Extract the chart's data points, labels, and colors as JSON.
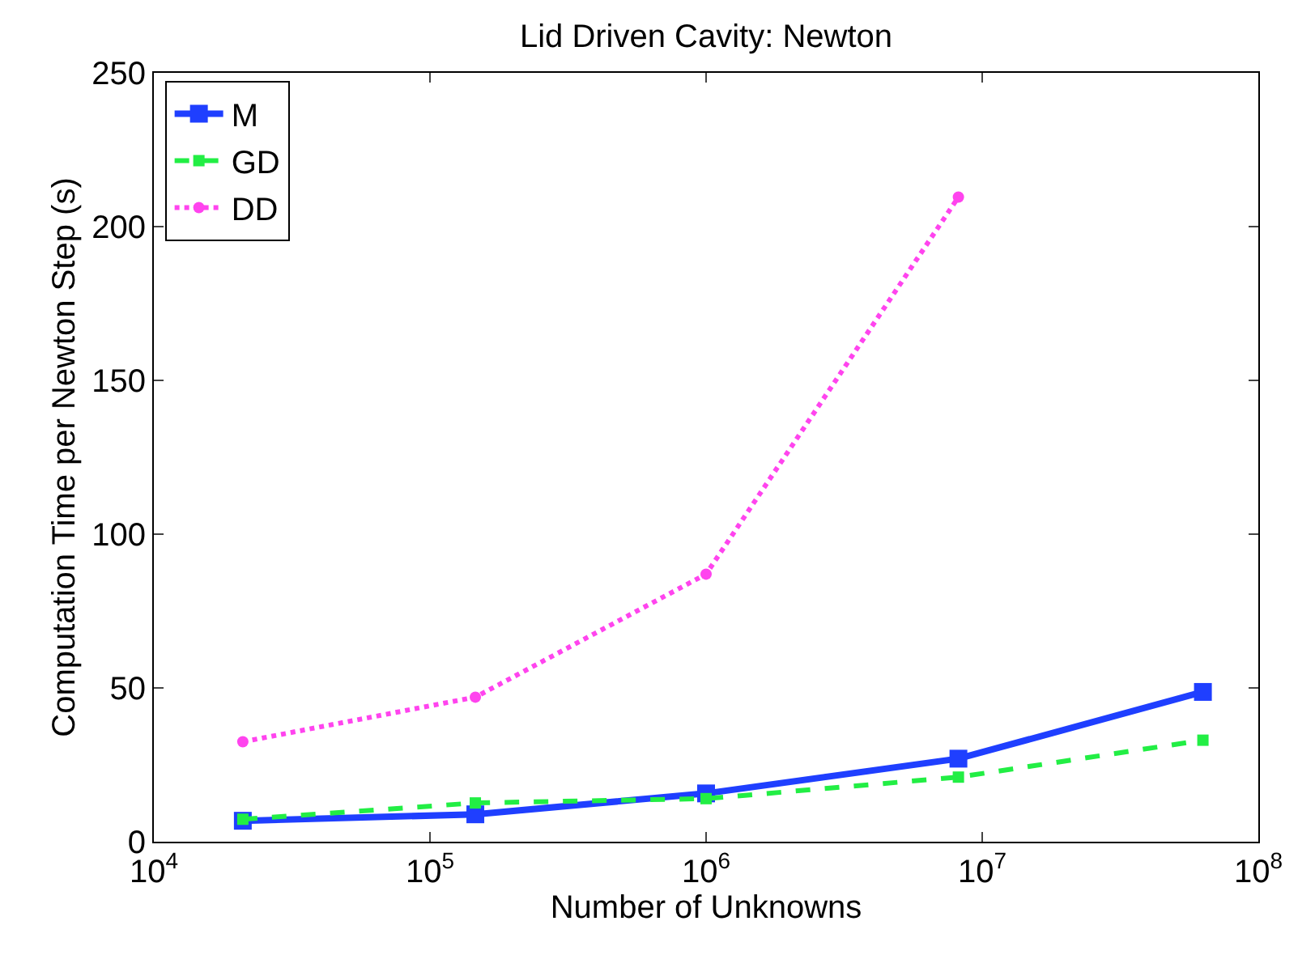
{
  "chart_data": {
    "type": "line",
    "title": "Lid Driven Cavity: Newton",
    "xlabel": "Number of Unknowns",
    "ylabel": "Computation Time per Newton Step (s)",
    "log": "x",
    "x": [
      21000,
      146000,
      1000000,
      8200000,
      63000000
    ],
    "xlim": [
      10000,
      100000000
    ],
    "xticks": [
      {
        "value": 10000,
        "label": "10$^{4}$"
      },
      {
        "value": 100000,
        "label": "10$^{5}$"
      },
      {
        "value": 1000000,
        "label": "10$^{6}$"
      },
      {
        "value": 10000000,
        "label": "10$^{7}$"
      },
      {
        "value": 100000000,
        "label": "10$^{8}$"
      }
    ],
    "ylim": [
      0,
      250
    ],
    "yticks": [
      0,
      50,
      100,
      150,
      200,
      250
    ],
    "grid": false,
    "legend": "top left",
    "series": [
      {
        "name": "M",
        "color": "#1f3fff",
        "values": [
          6.8,
          8.9,
          15.7,
          27,
          48.7
        ],
        "marker": "square",
        "line_style": "solid"
      },
      {
        "name": "GD",
        "color": "#22ee44",
        "values": [
          7.3,
          12.6,
          14,
          21,
          33
        ],
        "marker": "square",
        "line_style": "dashed"
      },
      {
        "name": "DD",
        "color": "#ff44ee",
        "values": [
          32.5,
          47,
          87,
          209.6,
          null
        ],
        "marker": "circle",
        "line_style": "dotted"
      }
    ]
  }
}
